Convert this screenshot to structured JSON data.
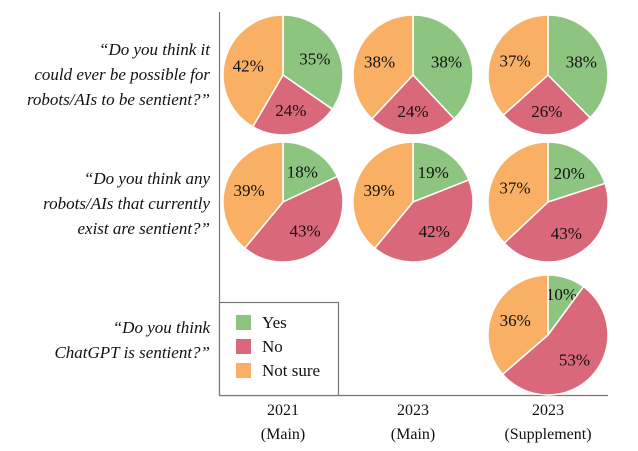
{
  "chart_data": {
    "type": "pie",
    "categories": [
      "Yes",
      "No",
      "Not sure"
    ],
    "colors": {
      "Yes": "#8dc47f",
      "No": "#d9687a",
      "Not sure": "#f9b064"
    },
    "legend": {
      "placement": "bottom-left",
      "entries": [
        "Yes",
        "No",
        "Not sure"
      ]
    },
    "columns": [
      {
        "lines": [
          "2021",
          "(Main)"
        ]
      },
      {
        "lines": [
          "2023",
          "(Main)"
        ]
      },
      {
        "lines": [
          "2023",
          "(Supplement)"
        ]
      }
    ],
    "rows": [
      {
        "question_lines": [
          "“Do you think it",
          "could ever be possible for",
          "robots/AIs to be sentient?”"
        ],
        "pies": [
          {
            "column": 0,
            "values": [
              35,
              24,
              42
            ]
          },
          {
            "column": 1,
            "values": [
              38,
              24,
              38
            ]
          },
          {
            "column": 2,
            "values": [
              38,
              26,
              37
            ]
          }
        ]
      },
      {
        "question_lines": [
          "“Do you think any",
          "robots/AIs that currently",
          "exist are sentient?”"
        ],
        "pies": [
          {
            "column": 0,
            "values": [
              18,
              43,
              39
            ]
          },
          {
            "column": 1,
            "values": [
              19,
              42,
              39
            ]
          },
          {
            "column": 2,
            "values": [
              20,
              43,
              37
            ]
          }
        ]
      },
      {
        "question_lines": [
          "“Do you think",
          "ChatGPT is sentient?”"
        ],
        "pies": [
          {
            "column": 2,
            "values": [
              10,
              53,
              36
            ]
          }
        ]
      }
    ]
  }
}
